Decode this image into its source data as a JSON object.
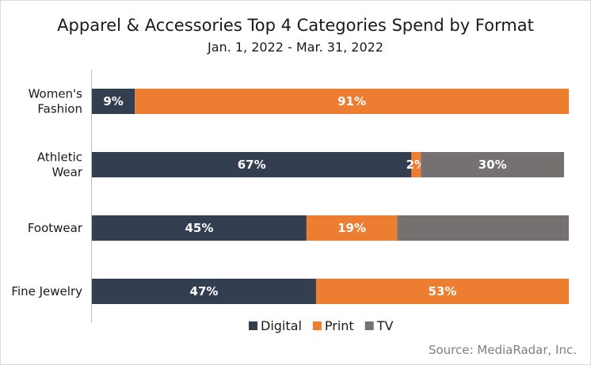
{
  "chart_data": {
    "type": "bar",
    "orientation": "horizontal",
    "stacked": true,
    "title": "Apparel & Accessories Top 4 Categories Spend by Format",
    "subtitle": "Jan. 1, 2022 - Mar. 31, 2022",
    "categories": [
      [
        "Women's",
        "Fashion"
      ],
      [
        "Athletic",
        "Wear"
      ],
      [
        "Footwear"
      ],
      [
        "Fine Jewelry"
      ]
    ],
    "series": [
      {
        "name": "Digital",
        "color": "#333f50",
        "values": [
          9,
          67,
          45,
          47
        ],
        "labels": [
          "9%",
          "67%",
          "45%",
          "47%"
        ]
      },
      {
        "name": "Print",
        "color": "#ed7d31",
        "values": [
          91,
          2,
          19,
          53
        ],
        "labels": [
          "91%",
          "2%",
          "19%",
          "53%"
        ]
      },
      {
        "name": "TV",
        "color": "#767171",
        "values": [
          0,
          30,
          36,
          0
        ],
        "labels": [
          "",
          "30%",
          "",
          ""
        ]
      }
    ],
    "xlim": [
      0,
      100
    ],
    "grid": false,
    "legend": "bottom",
    "source": "Source: MediaRadar, Inc."
  }
}
